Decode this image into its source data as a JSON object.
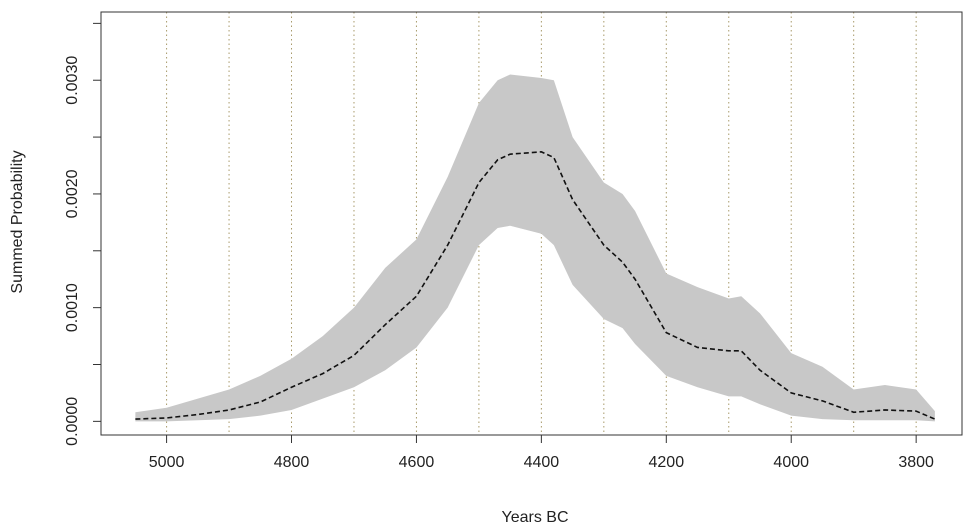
{
  "chart_data": {
    "type": "area",
    "title": "",
    "xlabel": "Years BC",
    "ylabel": "Summed Probability",
    "x_reversed": true,
    "xlim": [
      5105,
      3725
    ],
    "ylim": [
      -0.00012,
      0.0036
    ],
    "x_ticks": [
      5000,
      4800,
      4600,
      4400,
      4200,
      4000,
      3800
    ],
    "y_ticks": [
      0.0,
      0.001,
      0.002,
      0.003
    ],
    "y_tick_labels": [
      "0.0000",
      "0.0010",
      "0.0020",
      "0.0030"
    ],
    "y_minor_ticks": [
      0.0005,
      0.0015,
      0.0025,
      0.0035
    ],
    "grid": {
      "vertical_at": [
        5000,
        4900,
        4800,
        4700,
        4600,
        4500,
        4400,
        4300,
        4200,
        4100,
        4000,
        3900,
        3800
      ],
      "style": "dotted",
      "color": "#a89a6a"
    },
    "band_color": "#c8c8c8",
    "line_color": "#111111",
    "x": [
      5050,
      5000,
      4950,
      4900,
      4850,
      4800,
      4750,
      4700,
      4650,
      4600,
      4550,
      4500,
      4470,
      4450,
      4400,
      4380,
      4350,
      4300,
      4270,
      4250,
      4200,
      4150,
      4100,
      4080,
      4050,
      4000,
      3950,
      3900,
      3850,
      3800,
      3770
    ],
    "series": [
      {
        "role": "mean",
        "values": [
          2e-05,
          3e-05,
          6e-05,
          0.0001,
          0.00017,
          0.0003,
          0.00042,
          0.00058,
          0.00085,
          0.0011,
          0.00155,
          0.0021,
          0.0023,
          0.00235,
          0.00237,
          0.00232,
          0.00195,
          0.00155,
          0.0014,
          0.00125,
          0.00078,
          0.00065,
          0.00062,
          0.00062,
          0.00045,
          0.00025,
          0.00018,
          8e-05,
          0.0001,
          9e-05,
          2e-05
        ]
      },
      {
        "role": "upper",
        "values": [
          8e-05,
          0.00012,
          0.0002,
          0.00028,
          0.0004,
          0.00055,
          0.00075,
          0.001,
          0.00135,
          0.0016,
          0.00215,
          0.0028,
          0.003,
          0.00305,
          0.00302,
          0.003,
          0.0025,
          0.0021,
          0.002,
          0.00185,
          0.0013,
          0.00118,
          0.00108,
          0.0011,
          0.00095,
          0.0006,
          0.00048,
          0.00028,
          0.00032,
          0.00028,
          9e-05
        ]
      },
      {
        "role": "lower",
        "values": [
          0.0,
          0.0,
          1e-05,
          2e-05,
          5e-05,
          0.0001,
          0.0002,
          0.0003,
          0.00045,
          0.00065,
          0.001,
          0.00155,
          0.0017,
          0.00172,
          0.00165,
          0.00155,
          0.0012,
          0.0009,
          0.00082,
          0.00068,
          0.0004,
          0.0003,
          0.00022,
          0.00022,
          0.00015,
          5e-05,
          2e-05,
          1e-05,
          1e-05,
          1e-05,
          0.0
        ]
      }
    ]
  }
}
